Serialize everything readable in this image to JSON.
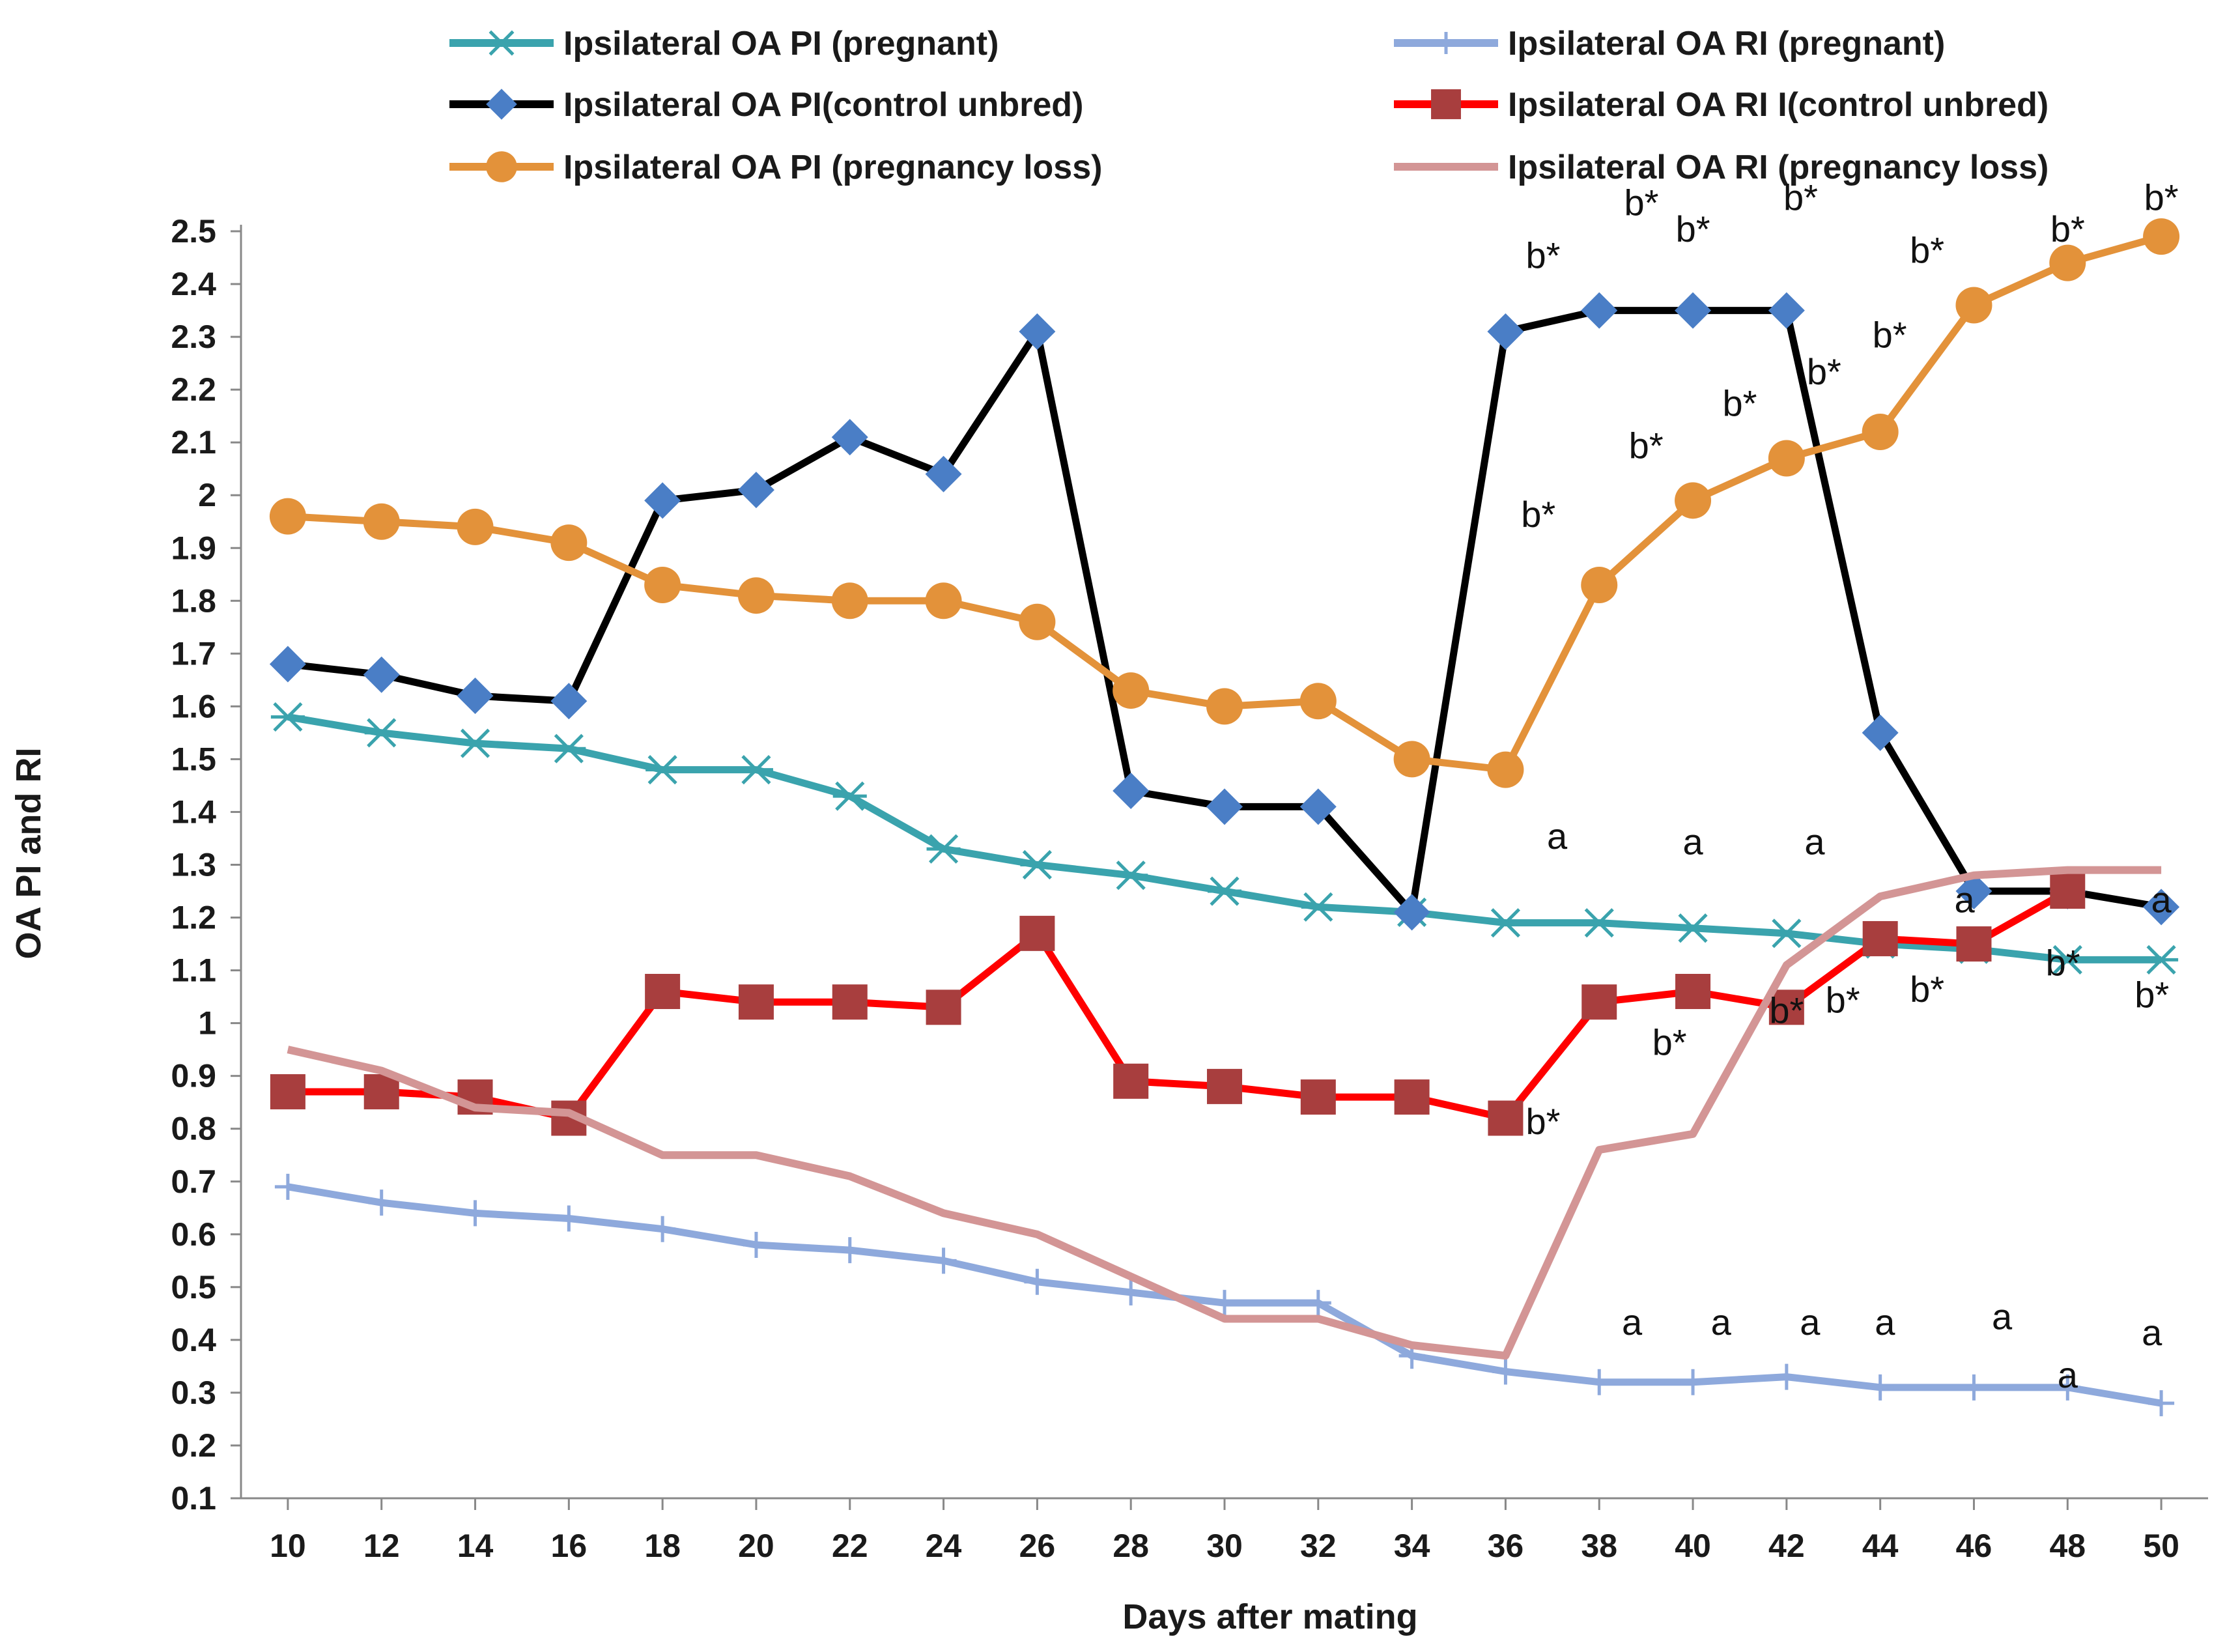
{
  "chart_data": {
    "type": "line",
    "title": "",
    "xlabel": "Days after mating",
    "ylabel": "OA  PI and RI",
    "x": [
      10,
      12,
      14,
      16,
      18,
      20,
      22,
      24,
      26,
      28,
      30,
      32,
      34,
      36,
      38,
      40,
      42,
      44,
      46,
      48,
      50
    ],
    "x_tick_labels": [
      "10",
      "12",
      "14",
      "16",
      "18",
      "20",
      "22",
      "24",
      "26",
      "28",
      "30",
      "32",
      "34",
      "36",
      "38",
      "40",
      "42",
      "44",
      "46",
      "48",
      "50"
    ],
    "xlim": [
      9,
      51
    ],
    "ylim": [
      0.1,
      2.5
    ],
    "y_tick_labels": [
      "0.1",
      "0.2",
      "0.3",
      "0.4",
      "0.5",
      "0.6",
      "0.7",
      "0.8",
      "0.9",
      "1",
      "1.1",
      "1.2",
      "1.3",
      "1.4",
      "1.5",
      "1.6",
      "1.7",
      "1.8",
      "1.9",
      "2",
      "2.1",
      "2.2",
      "2.3",
      "2.4",
      "2.5"
    ],
    "grid": false,
    "legend_position": "top",
    "series": [
      {
        "name": "Ipsilateral OA PI (pregnant)",
        "color": "#3aa3ad",
        "marker": "star",
        "values": [
          1.58,
          1.55,
          1.53,
          1.52,
          1.48,
          1.48,
          1.43,
          1.33,
          1.3,
          1.28,
          1.25,
          1.22,
          1.21,
          1.19,
          1.19,
          1.18,
          1.17,
          1.15,
          1.14,
          1.12,
          1.12
        ]
      },
      {
        "name": "Ipsilateral OA RI (pregnant)",
        "color": "#8ea9dc",
        "marker": "plus",
        "values": [
          0.69,
          0.66,
          0.64,
          0.63,
          0.61,
          0.58,
          0.57,
          0.55,
          0.51,
          0.49,
          0.47,
          0.47,
          0.37,
          0.34,
          0.32,
          0.32,
          0.33,
          0.31,
          0.31,
          0.31,
          0.28
        ]
      },
      {
        "name": "Ipsilateral OA PI(control unbred)",
        "color": "#000000",
        "marker": "diamond",
        "marker_color": "#4a7ec6",
        "values": [
          1.68,
          1.66,
          1.62,
          1.61,
          1.99,
          2.01,
          2.11,
          2.04,
          2.31,
          1.44,
          1.41,
          1.41,
          1.21,
          2.31,
          2.35,
          2.35,
          2.35,
          1.55,
          1.25,
          1.25,
          1.22
        ]
      },
      {
        "name": "Ipsilateral OA RI I(control unbred)",
        "color": "#ff0000",
        "marker": "square",
        "marker_color": "#a83e3e",
        "values": [
          0.87,
          0.87,
          0.86,
          0.82,
          1.06,
          1.04,
          1.04,
          1.03,
          1.17,
          0.89,
          0.88,
          0.86,
          0.86,
          0.82,
          1.04,
          1.06,
          1.03,
          1.16,
          1.15,
          1.25,
          null
        ]
      },
      {
        "name": "Ipsilateral OA PI (pregnancy loss)",
        "color": "#e3923a",
        "marker": "circle",
        "values": [
          1.96,
          1.95,
          1.94,
          1.91,
          1.83,
          1.81,
          1.8,
          1.8,
          1.76,
          1.63,
          1.6,
          1.61,
          1.5,
          1.48,
          1.83,
          1.99,
          2.07,
          2.12,
          2.36,
          2.44,
          2.49
        ]
      },
      {
        "name": "Ipsilateral OA RI (pregnancy loss)",
        "color": "#d39595",
        "marker": "none",
        "values": [
          0.95,
          0.91,
          0.84,
          0.83,
          0.75,
          0.75,
          0.71,
          0.64,
          0.6,
          0.52,
          0.44,
          0.44,
          0.39,
          0.37,
          0.76,
          0.79,
          1.11,
          1.24,
          1.28,
          1.29,
          1.29
        ]
      }
    ],
    "annotations": [
      {
        "text": "b*",
        "x": 36.8,
        "y": 2.43
      },
      {
        "text": "b*",
        "x": 38.9,
        "y": 2.53
      },
      {
        "text": "b*",
        "x": 40.0,
        "y": 2.48
      },
      {
        "text": "b*",
        "x": 42.3,
        "y": 2.54
      },
      {
        "text": "b*",
        "x": 45.0,
        "y": 2.44
      },
      {
        "text": "b*",
        "x": 48.0,
        "y": 2.48
      },
      {
        "text": "b*",
        "x": 50.0,
        "y": 2.54
      },
      {
        "text": "b*",
        "x": 36.7,
        "y": 1.94
      },
      {
        "text": "b*",
        "x": 39.0,
        "y": 2.07
      },
      {
        "text": "b*",
        "x": 41.0,
        "y": 2.15
      },
      {
        "text": "b*",
        "x": 42.8,
        "y": 2.21
      },
      {
        "text": "b*",
        "x": 44.2,
        "y": 2.28
      },
      {
        "text": "a",
        "x": 37.1,
        "y": 1.33
      },
      {
        "text": "a",
        "x": 40.0,
        "y": 1.32
      },
      {
        "text": "a",
        "x": 42.6,
        "y": 1.32
      },
      {
        "text": "a",
        "x": 45.8,
        "y": 1.21
      },
      {
        "text": "a",
        "x": 50.0,
        "y": 1.21
      },
      {
        "text": "b*",
        "x": 36.8,
        "y": 0.79
      },
      {
        "text": "b*",
        "x": 39.5,
        "y": 0.94
      },
      {
        "text": "b*",
        "x": 42.0,
        "y": 1.0
      },
      {
        "text": "b*",
        "x": 43.2,
        "y": 1.02
      },
      {
        "text": "b*",
        "x": 45.0,
        "y": 1.04
      },
      {
        "text": "b*",
        "x": 47.9,
        "y": 1.09
      },
      {
        "text": "b*",
        "x": 49.8,
        "y": 1.03
      },
      {
        "text": "a",
        "x": 38.7,
        "y": 0.41
      },
      {
        "text": "a",
        "x": 40.6,
        "y": 0.41
      },
      {
        "text": "a",
        "x": 42.5,
        "y": 0.41
      },
      {
        "text": "a",
        "x": 44.1,
        "y": 0.41
      },
      {
        "text": "a",
        "x": 46.6,
        "y": 0.42
      },
      {
        "text": "a",
        "x": 48.0,
        "y": 0.31
      },
      {
        "text": "a",
        "x": 49.8,
        "y": 0.39
      }
    ]
  }
}
